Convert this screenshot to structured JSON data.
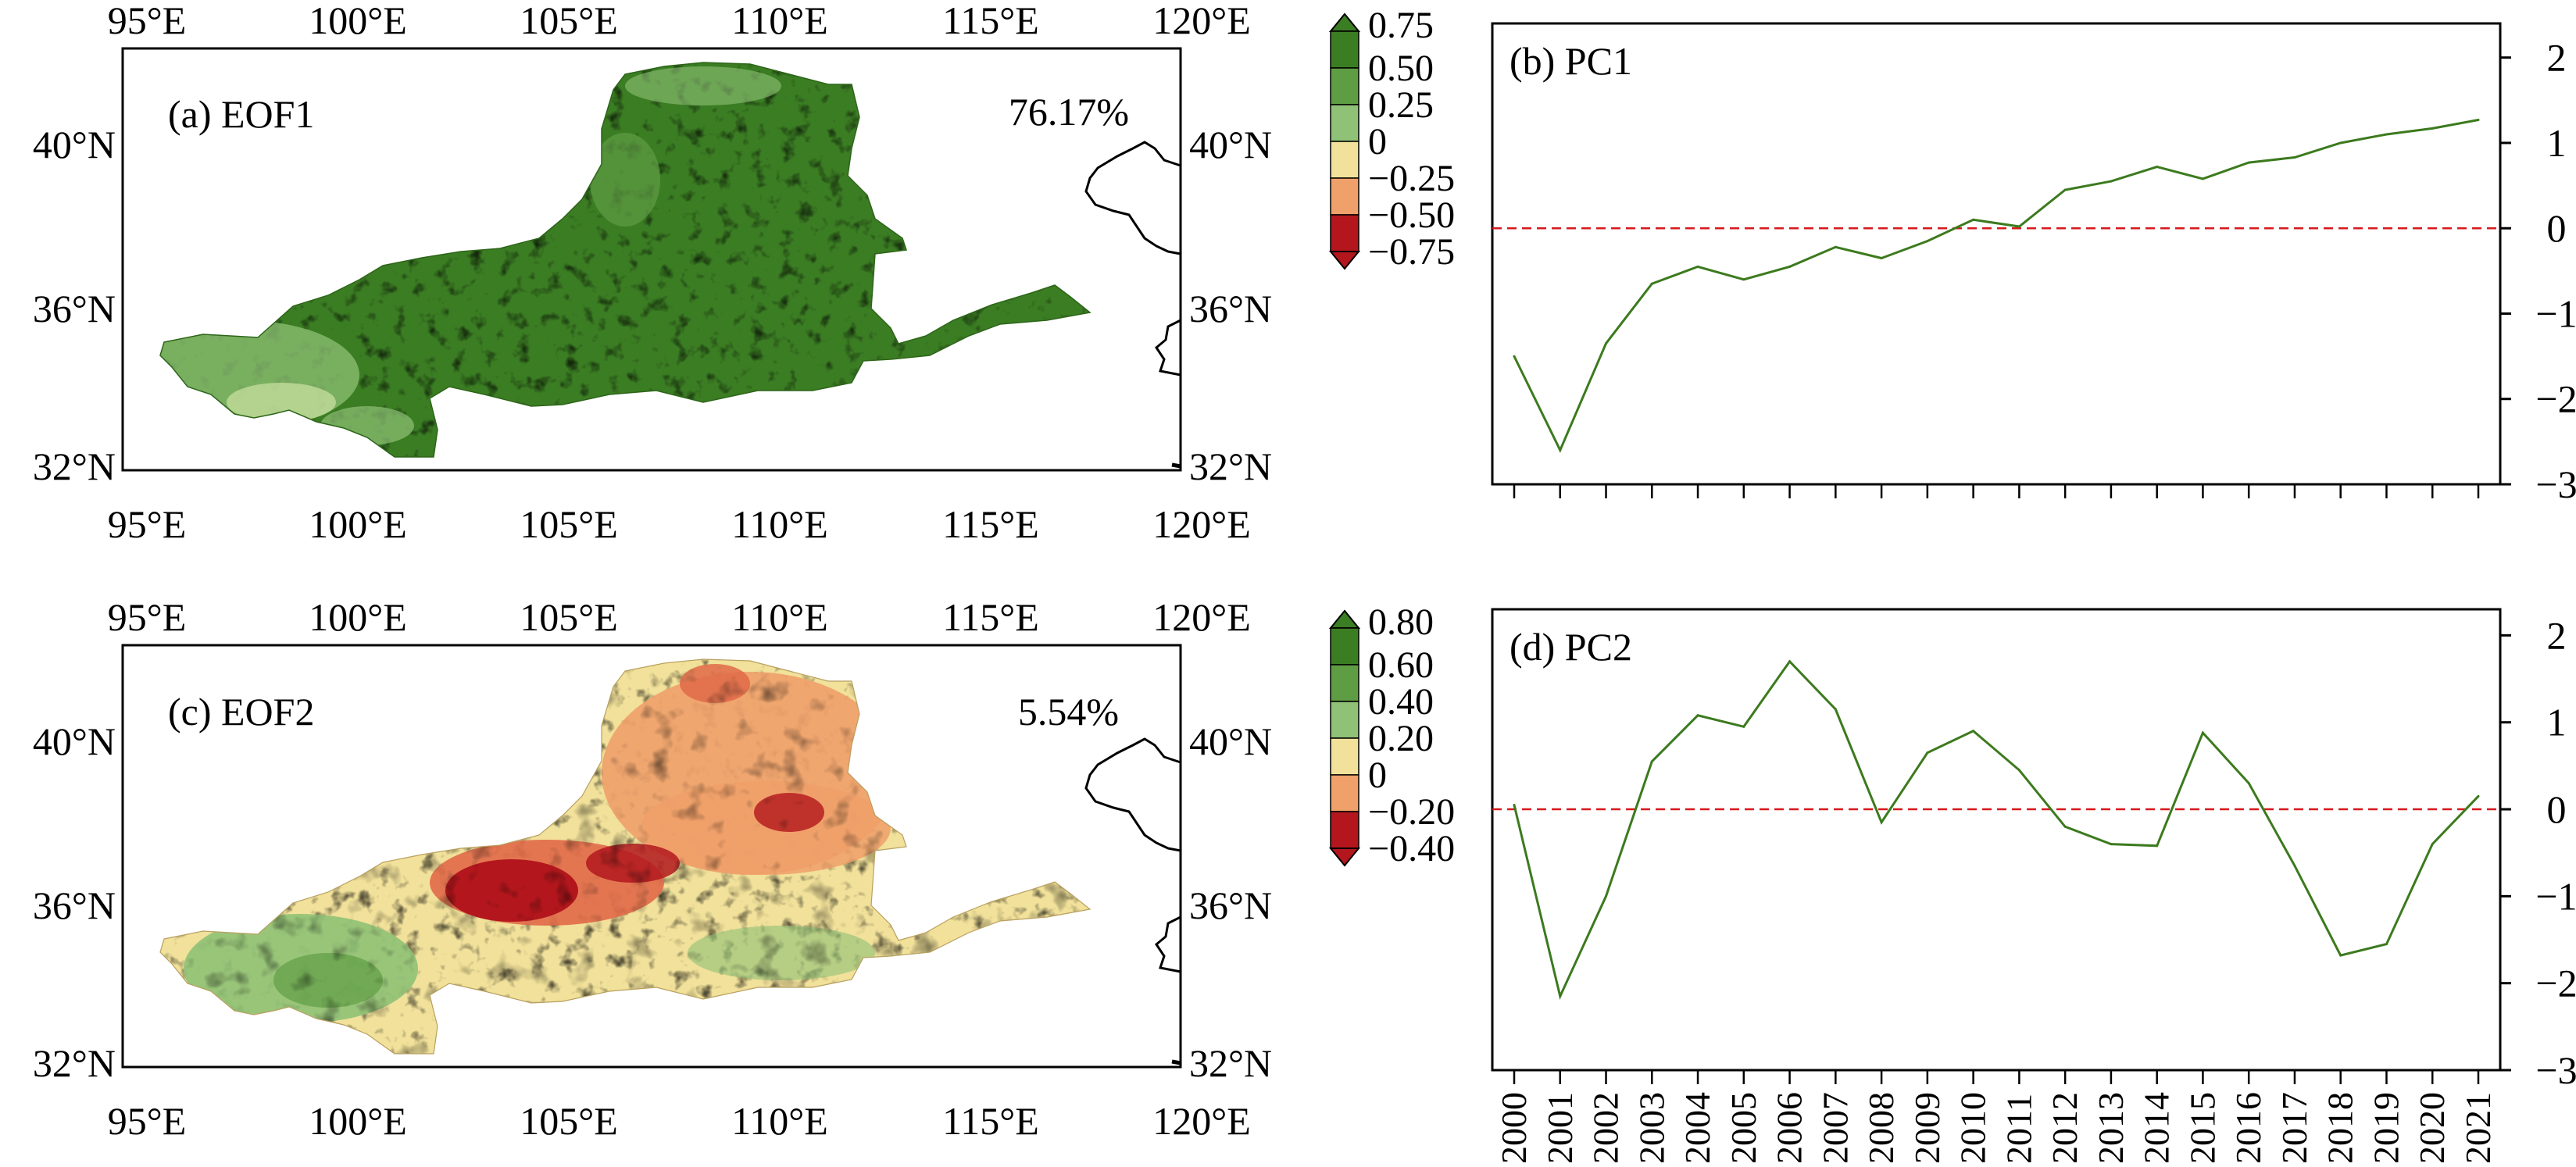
{
  "colors": {
    "g1": "#3b7d23",
    "g2": "#5f9d45",
    "g3": "#8fc276",
    "g4": "#cde3a3",
    "y1": "#f1e19a",
    "o1": "#f0a06a",
    "r1": "#e16a49",
    "r2": "#b3171d",
    "line": "#3c7a1e",
    "ref": "#d7191c",
    "coast": "#000000"
  },
  "maps": {
    "lon_ticks": [
      "95°E",
      "100°E",
      "105°E",
      "110°E",
      "115°E",
      "120°E"
    ],
    "lat_ticks": [
      "32°N",
      "36°N",
      "40°N"
    ],
    "panels": [
      {
        "label": "(a) EOF1",
        "pct": "76.17%",
        "colorbar": [
          "0.75",
          "0.50",
          "0.25",
          "0",
          "−0.25",
          "−0.50",
          "−0.75"
        ]
      },
      {
        "label": "(c) EOF2",
        "pct": "5.54%",
        "colorbar": [
          "0.80",
          "0.60",
          "0.40",
          "0.20",
          "0",
          "−0.20",
          "−0.40"
        ]
      }
    ]
  },
  "chart_data": [
    {
      "type": "line",
      "title": "(b) PC1",
      "x": [
        "2000",
        "2001",
        "2002",
        "2003",
        "2004",
        "2005",
        "2006",
        "2007",
        "2008",
        "2009",
        "2010",
        "2011",
        "2012",
        "2013",
        "2014",
        "2015",
        "2016",
        "2017",
        "2018",
        "2019",
        "2020",
        "2021"
      ],
      "series": [
        {
          "values": [
            -1.5,
            -2.6,
            -1.35,
            -0.65,
            -0.45,
            -0.6,
            -0.45,
            -0.22,
            -0.35,
            -0.15,
            0.1,
            0.02,
            0.45,
            0.55,
            0.72,
            0.58,
            0.77,
            0.83,
            1.0,
            1.1,
            1.17,
            1.27
          ]
        }
      ],
      "ylim": [
        -3,
        2.4
      ],
      "yticks": [
        2,
        1,
        0,
        -1,
        -2,
        -3
      ],
      "ref_line": 0,
      "xlabel": "",
      "ylabel": ""
    },
    {
      "type": "line",
      "title": "(d) PC2",
      "x": [
        "2000",
        "2001",
        "2002",
        "2003",
        "2004",
        "2005",
        "2006",
        "2007",
        "2008",
        "2009",
        "2010",
        "2011",
        "2012",
        "2013",
        "2014",
        "2015",
        "2016",
        "2017",
        "2018",
        "2019",
        "2020",
        "2021"
      ],
      "series": [
        {
          "values": [
            0.05,
            -2.15,
            -1.0,
            0.55,
            1.08,
            0.95,
            1.7,
            1.15,
            -0.15,
            0.65,
            0.9,
            0.45,
            -0.2,
            -0.4,
            -0.42,
            0.88,
            0.3,
            -0.65,
            -1.68,
            -1.55,
            -0.4,
            0.15
          ]
        }
      ],
      "ylim": [
        -3,
        2.3
      ],
      "yticks": [
        2,
        1,
        0,
        -1,
        -2,
        -3
      ],
      "ref_line": 0,
      "xlabel": "",
      "ylabel": ""
    }
  ]
}
